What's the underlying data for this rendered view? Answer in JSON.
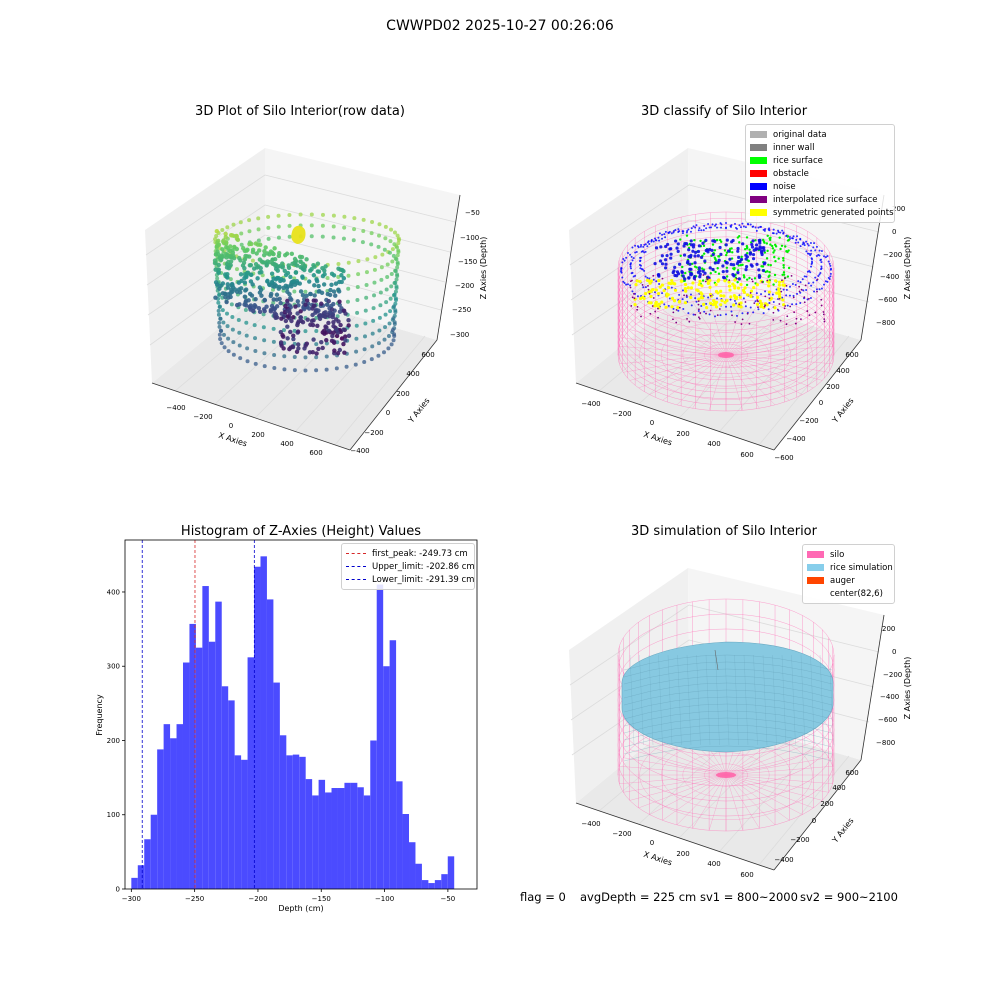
{
  "figure_title": "CWWPD02 2025-10-27 00:26:06",
  "status_bar": {
    "flag": "flag = 0",
    "avg_depth": "avgDepth = 225 cm",
    "sv1": "sv1 = 800~2000",
    "sv2": "sv2 = 900~2100"
  },
  "colors": {
    "histogram_bar": "#4b4bff",
    "peak_line": "#d62728",
    "limit_line": "#0000cc",
    "silo_wire": "#ff69b4",
    "rice_sim": "#87c9e1"
  },
  "chart_data": [
    {
      "type": "scatter",
      "subtype": "3d-scatter",
      "title": "3D Plot of Silo Interior(row data)",
      "xlabel": "X Axies",
      "ylabel": "Y Axies",
      "zlabel": "Z Axies (Depth)",
      "x_ticks": [
        "−400",
        "−200",
        "0",
        "200",
        "400",
        "600"
      ],
      "y_ticks": [
        "−400",
        "−200",
        "0",
        "200",
        "400",
        "600"
      ],
      "z_ticks": [
        "−50",
        "−100",
        "−150",
        "−200",
        "−250",
        "−300"
      ],
      "colormap": "viridis"
    },
    {
      "type": "scatter",
      "subtype": "3d-scatter",
      "title": "3D classify of Silo Interior",
      "xlabel": "X Axies",
      "ylabel": "Y Axies",
      "zlabel": "Z Axies (Depth)",
      "x_ticks": [
        "−400",
        "−200",
        "0",
        "200",
        "400",
        "600"
      ],
      "y_ticks": [
        "−600",
        "−400",
        "−200",
        "0",
        "200",
        "400",
        "600"
      ],
      "z_ticks": [
        "200",
        "0",
        "−200",
        "−400",
        "−600",
        "−800"
      ],
      "legend_position": "top-right",
      "legend": [
        {
          "label": "original data",
          "color": "#b0b0b0"
        },
        {
          "label": "inner wall",
          "color": "#808080"
        },
        {
          "label": "rice surface",
          "color": "#00ff00"
        },
        {
          "label": "obstacle",
          "color": "#ff0000"
        },
        {
          "label": "noise",
          "color": "#0000ff"
        },
        {
          "label": "interpolated rice surface",
          "color": "#800080"
        },
        {
          "label": "symmetric generated points",
          "color": "#ffff00"
        }
      ]
    },
    {
      "type": "bar",
      "subtype": "histogram",
      "title": "Histogram of Z-Axies (Height) Values",
      "xlabel": "Depth (cm)",
      "ylabel": "Frequency",
      "xlim": [
        -305,
        -27
      ],
      "ylim": [
        0,
        470
      ],
      "x_ticks": [
        -300,
        -250,
        -200,
        -150,
        -100,
        -50
      ],
      "x_tick_labels": [
        "−300",
        "−250",
        "−200",
        "−150",
        "−100",
        "−50"
      ],
      "y_ticks": [
        0,
        100,
        200,
        300,
        400
      ],
      "bin_start": -300,
      "bin_width": 5.1,
      "values": [
        15,
        32,
        67,
        100,
        188,
        222,
        203,
        222,
        305,
        357,
        325,
        408,
        333,
        387,
        273,
        254,
        180,
        174,
        312,
        434,
        448,
        390,
        278,
        207,
        180,
        181,
        178,
        148,
        126,
        147,
        130,
        136,
        136,
        143,
        143,
        137,
        126,
        200,
        410,
        300,
        335,
        145,
        101,
        63,
        34,
        12,
        8,
        12,
        20,
        44
      ],
      "vlines": [
        {
          "label": "first_peak: -249.73 cm",
          "x": -249.73,
          "color": "#d62728"
        },
        {
          "label": "Upper_limit: -202.86 cm",
          "x": -202.86,
          "color": "#0000cc"
        },
        {
          "label": "Lower_limit: -291.39 cm",
          "x": -291.39,
          "color": "#0000cc"
        }
      ],
      "legend_position": "top-right"
    },
    {
      "type": "scatter",
      "subtype": "3d-surface",
      "title": "3D simulation of Silo Interior",
      "xlabel": "X Axies",
      "ylabel": "Y Axies",
      "zlabel": "Z Axies (Depth)",
      "x_ticks": [
        "−400",
        "−200",
        "0",
        "200",
        "400",
        "600"
      ],
      "y_ticks": [
        "−400",
        "−200",
        "0",
        "200",
        "400",
        "600"
      ],
      "z_ticks": [
        "200",
        "0",
        "−200",
        "−400",
        "−600",
        "−800"
      ],
      "legend_position": "top-right",
      "legend": [
        {
          "label": "silo",
          "color": "#ff69b4"
        },
        {
          "label": "rice simulation",
          "color": "#87ceeb"
        },
        {
          "label": "auger",
          "color": "#ff4500"
        },
        {
          "label": "center(82,6)",
          "color": "#ffffff"
        }
      ]
    }
  ]
}
